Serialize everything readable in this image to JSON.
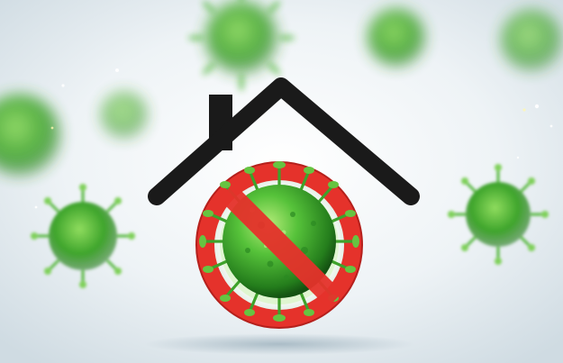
{
  "scene": {
    "description_icon": "stay-home-no-virus-illustration",
    "colors": {
      "background_light": "#eef3f6",
      "background_mid": "#d9e4ea",
      "virus_green": "#3fae2e",
      "virus_green_dark": "#1f6f18",
      "virus_green_light": "#9be06a",
      "roof_dark": "#1a1a1a",
      "ban_red": "#e5322b",
      "ban_red_dark": "#b5201c"
    },
    "icons": [
      "house-roof-icon",
      "prohibition-sign-icon",
      "coronavirus-icon"
    ]
  }
}
